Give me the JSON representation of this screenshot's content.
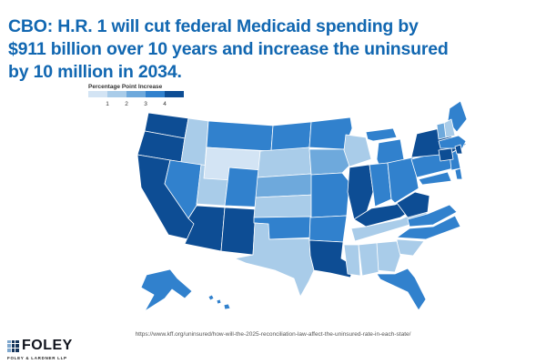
{
  "slide": {
    "background": "#ffffff"
  },
  "headline": {
    "color": "#1167b1",
    "lines": [
      "CBO: H.R. 1 will cut federal Medicaid spending by",
      "$911 billion over 10 years and increase the uninsured",
      "by 10 million in 2034."
    ]
  },
  "source": {
    "url": "https://www.kff.org/uninsured/how-will-the-2025-reconciliation-law-affect-the-uninsured-rate-in-each-state/"
  },
  "logo": {
    "name": "FOLEY",
    "subtext": "FOLEY & LARDNER LLP",
    "mark_light_color": "#7fa8cf",
    "mark_dark_color": "#16365c"
  },
  "chart_data": {
    "type": "choropleth",
    "title": "Percentage Point Increase",
    "subject": "Increase in uninsured rate by state under the 2025 reconciliation law (H.R. 1)",
    "legend": {
      "tick_labels": [
        "1",
        "2",
        "3",
        "4"
      ],
      "bucket_ranges": [
        "<1",
        "1-2",
        "2-3",
        "3-4",
        "4+"
      ],
      "bucket_colors": [
        "#d3e4f4",
        "#a9cce9",
        "#6ea9dc",
        "#3181cd",
        "#0d4d94"
      ],
      "border_color": "#ffffff",
      "label_color": "#333333"
    },
    "states": {
      "WA": "4+",
      "OR": "4+",
      "CA": "4+",
      "AZ": "4+",
      "NM": "4+",
      "LA": "4+",
      "IL": "4+",
      "KY": "4+",
      "WV": "4+",
      "NY": "4+",
      "CT": "4+",
      "RI": "4+",
      "MT": "3-4",
      "ND": "3-4",
      "MN": "3-4",
      "NV": "3-4",
      "CO": "3-4",
      "MO": "3-4",
      "OK": "3-4",
      "AR": "3-4",
      "MI": "3-4",
      "IN": "3-4",
      "OH": "3-4",
      "PA": "3-4",
      "NJ": "3-4",
      "DE": "3-4",
      "MD": "3-4",
      "VA": "3-4",
      "NC": "3-4",
      "FL": "3-4",
      "MA": "3-4",
      "ME": "3-4",
      "AK": "3-4",
      "HI": "3-4",
      "NE": "2-3",
      "IA": "2-3",
      "VT": "2-3",
      "ID": "1-2",
      "UT": "1-2",
      "SD": "1-2",
      "KS": "1-2",
      "TX": "1-2",
      "WI": "1-2",
      "TN": "1-2",
      "MS": "1-2",
      "AL": "1-2",
      "GA": "1-2",
      "SC": "1-2",
      "NH": "1-2",
      "WY": "<1"
    }
  }
}
